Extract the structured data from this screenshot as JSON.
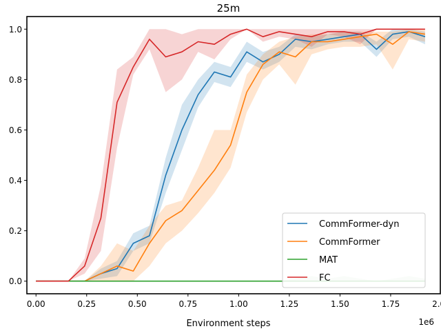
{
  "chart_data": {
    "type": "line",
    "title": "25m",
    "xlabel": "Environment steps",
    "x_offset_label": "1e6",
    "ylabel": "",
    "xlim": [
      -0.045,
      1.995
    ],
    "ylim": [
      -0.05,
      1.05
    ],
    "x_ticks": [
      0,
      0.25,
      0.5,
      0.75,
      1.0,
      1.25,
      1.5,
      1.75,
      2.0
    ],
    "x_tick_labels": [
      "0.00",
      "0.25",
      "0.50",
      "0.75",
      "1.00",
      "1.25",
      "1.50",
      "1.75",
      "2.00"
    ],
    "y_ticks": [
      0,
      0.2,
      0.4,
      0.6,
      0.8,
      1.0
    ],
    "y_tick_labels": [
      "0.0",
      "0.2",
      "0.4",
      "0.6",
      "0.8",
      "1.0"
    ],
    "legend_position": "lower-right",
    "x": [
      0.0,
      0.08,
      0.16,
      0.24,
      0.32,
      0.4,
      0.48,
      0.56,
      0.64,
      0.72,
      0.8,
      0.88,
      0.96,
      1.04,
      1.12,
      1.2,
      1.28,
      1.36,
      1.44,
      1.52,
      1.6,
      1.68,
      1.76,
      1.84,
      1.92
    ],
    "series": [
      {
        "name": "CommFormer-dyn",
        "color": "#1f77b4",
        "values": [
          0,
          0,
          0,
          0,
          0.03,
          0.05,
          0.15,
          0.18,
          0.42,
          0.6,
          0.74,
          0.83,
          0.81,
          0.91,
          0.87,
          0.9,
          0.96,
          0.95,
          0.96,
          0.97,
          0.98,
          0.92,
          0.98,
          0.99,
          0.97
        ],
        "lower": [
          0,
          0,
          0,
          0,
          0.01,
          0.02,
          0.12,
          0.15,
          0.35,
          0.52,
          0.69,
          0.79,
          0.77,
          0.87,
          0.84,
          0.87,
          0.93,
          0.92,
          0.94,
          0.95,
          0.95,
          0.89,
          0.96,
          0.97,
          0.94
        ],
        "upper": [
          0,
          0,
          0,
          0,
          0.05,
          0.08,
          0.19,
          0.22,
          0.49,
          0.7,
          0.8,
          0.87,
          0.85,
          0.95,
          0.91,
          0.93,
          0.98,
          0.97,
          0.98,
          0.99,
          0.99,
          0.95,
          1.0,
          1.0,
          0.99
        ]
      },
      {
        "name": "CommFormer",
        "color": "#ff7f0e",
        "values": [
          0,
          0,
          0,
          0,
          0.03,
          0.06,
          0.04,
          0.15,
          0.24,
          0.28,
          0.36,
          0.44,
          0.54,
          0.75,
          0.86,
          0.91,
          0.89,
          0.95,
          0.95,
          0.96,
          0.97,
          0.98,
          0.94,
          0.99,
          0.98
        ],
        "lower": [
          0,
          0,
          0,
          0,
          0.0,
          0.0,
          0.0,
          0.06,
          0.15,
          0.2,
          0.27,
          0.35,
          0.45,
          0.67,
          0.8,
          0.86,
          0.78,
          0.9,
          0.92,
          0.93,
          0.93,
          0.94,
          0.84,
          0.96,
          0.95
        ],
        "upper": [
          0,
          0,
          0,
          0,
          0.06,
          0.15,
          0.12,
          0.22,
          0.3,
          0.32,
          0.45,
          0.6,
          0.6,
          0.82,
          0.9,
          0.95,
          0.97,
          0.98,
          0.98,
          0.99,
          0.99,
          0.99,
          0.99,
          1.0,
          1.0
        ]
      },
      {
        "name": "MAT",
        "color": "#2ca02c",
        "values": [
          0,
          0,
          0,
          0,
          0,
          0,
          0,
          0,
          0,
          0,
          0,
          0,
          0,
          0,
          0,
          0,
          0,
          0,
          0,
          0,
          0,
          0,
          0,
          0,
          0
        ],
        "lower": [
          0,
          0,
          0,
          0,
          0,
          0,
          0,
          0,
          0,
          0,
          0,
          0,
          0,
          0,
          0,
          0,
          0,
          0,
          0,
          0,
          0,
          0,
          0,
          0,
          0
        ],
        "upper": [
          0,
          0,
          0,
          0,
          0,
          0,
          0,
          0,
          0,
          0,
          0,
          0,
          0,
          0,
          0,
          0,
          0.01,
          0.02,
          0.01,
          0.02,
          0.01,
          0.0,
          0.01,
          0.02,
          0.01
        ]
      },
      {
        "name": "FC",
        "color": "#d62728",
        "values": [
          0,
          0,
          0,
          0.06,
          0.25,
          0.71,
          0.85,
          0.96,
          0.89,
          0.91,
          0.95,
          0.94,
          0.98,
          1.0,
          0.97,
          0.99,
          0.98,
          0.97,
          0.99,
          0.99,
          0.98,
          1.0,
          1.0,
          1.0,
          1.0
        ],
        "lower": [
          0,
          0,
          0,
          0.03,
          0.12,
          0.53,
          0.82,
          0.92,
          0.75,
          0.8,
          0.91,
          0.88,
          0.96,
          1.0,
          0.95,
          0.97,
          0.96,
          0.93,
          0.98,
          0.97,
          0.94,
          1.0,
          1.0,
          1.0,
          1.0
        ],
        "upper": [
          0,
          0,
          0,
          0.09,
          0.38,
          0.84,
          0.89,
          1.0,
          1.0,
          0.98,
          1.0,
          1.0,
          1.0,
          1.0,
          1.0,
          1.0,
          1.0,
          1.0,
          1.0,
          1.0,
          1.0,
          1.0,
          1.0,
          1.0,
          1.0
        ]
      }
    ]
  }
}
